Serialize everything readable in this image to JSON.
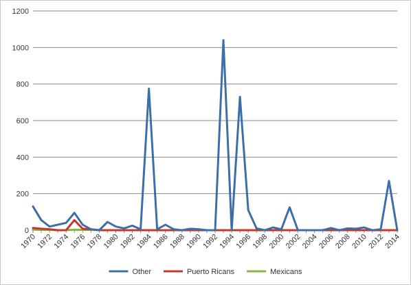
{
  "chart_data": {
    "type": "line",
    "title": "",
    "xlabel": "",
    "ylabel": "",
    "ylim": [
      0,
      1200
    ],
    "yticks": [
      0,
      200,
      400,
      600,
      800,
      1000,
      1200
    ],
    "grid": "horizontal",
    "legend_position": "bottom",
    "x": [
      1970,
      1971,
      1972,
      1973,
      1974,
      1975,
      1976,
      1977,
      1978,
      1979,
      1980,
      1981,
      1982,
      1983,
      1984,
      1985,
      1986,
      1987,
      1988,
      1989,
      1990,
      1991,
      1992,
      1993,
      1994,
      1995,
      1996,
      1997,
      1998,
      1999,
      2000,
      2001,
      2002,
      2003,
      2004,
      2005,
      2006,
      2007,
      2008,
      2009,
      2010,
      2011,
      2012,
      2013,
      2014
    ],
    "xtick_labels": [
      "1970",
      "1972",
      "1974",
      "1976",
      "1978",
      "1980",
      "1982",
      "1984",
      "1986",
      "1988",
      "1990",
      "1992",
      "1994",
      "1996",
      "1998",
      "2000",
      "2002",
      "2004",
      "2006",
      "2008",
      "2010",
      "2012",
      "2014"
    ],
    "series": [
      {
        "name": "Other",
        "color": "#3c6fa8",
        "values": [
          130,
          55,
          20,
          30,
          40,
          95,
          30,
          5,
          0,
          45,
          20,
          10,
          25,
          5,
          775,
          5,
          30,
          5,
          0,
          8,
          5,
          0,
          0,
          1040,
          0,
          730,
          110,
          10,
          0,
          15,
          5,
          125,
          0,
          0,
          0,
          0,
          12,
          0,
          10,
          8,
          15,
          0,
          5,
          270,
          0
        ]
      },
      {
        "name": "Puerto Ricans",
        "color": "#c0392b",
        "values": [
          12,
          8,
          5,
          0,
          0,
          55,
          8,
          5,
          0,
          0,
          0,
          0,
          0,
          0,
          0,
          0,
          0,
          0,
          0,
          0,
          0,
          0,
          0,
          0,
          0,
          0,
          0,
          0,
          0,
          0,
          0,
          0,
          0,
          0,
          0,
          0,
          0,
          0,
          0,
          0,
          0,
          0,
          0,
          0,
          0
        ]
      },
      {
        "name": "Mexicans",
        "color": "#8db043",
        "values": [
          3,
          2,
          2,
          0,
          0,
          3,
          2,
          2,
          0,
          0,
          0,
          0,
          0,
          0,
          0,
          0,
          0,
          0,
          0,
          0,
          0,
          0,
          0,
          0,
          0,
          0,
          0,
          0,
          0,
          0,
          0,
          0,
          0,
          0,
          0,
          0,
          0,
          0,
          0,
          0,
          0,
          0,
          0,
          0,
          0
        ]
      }
    ]
  }
}
